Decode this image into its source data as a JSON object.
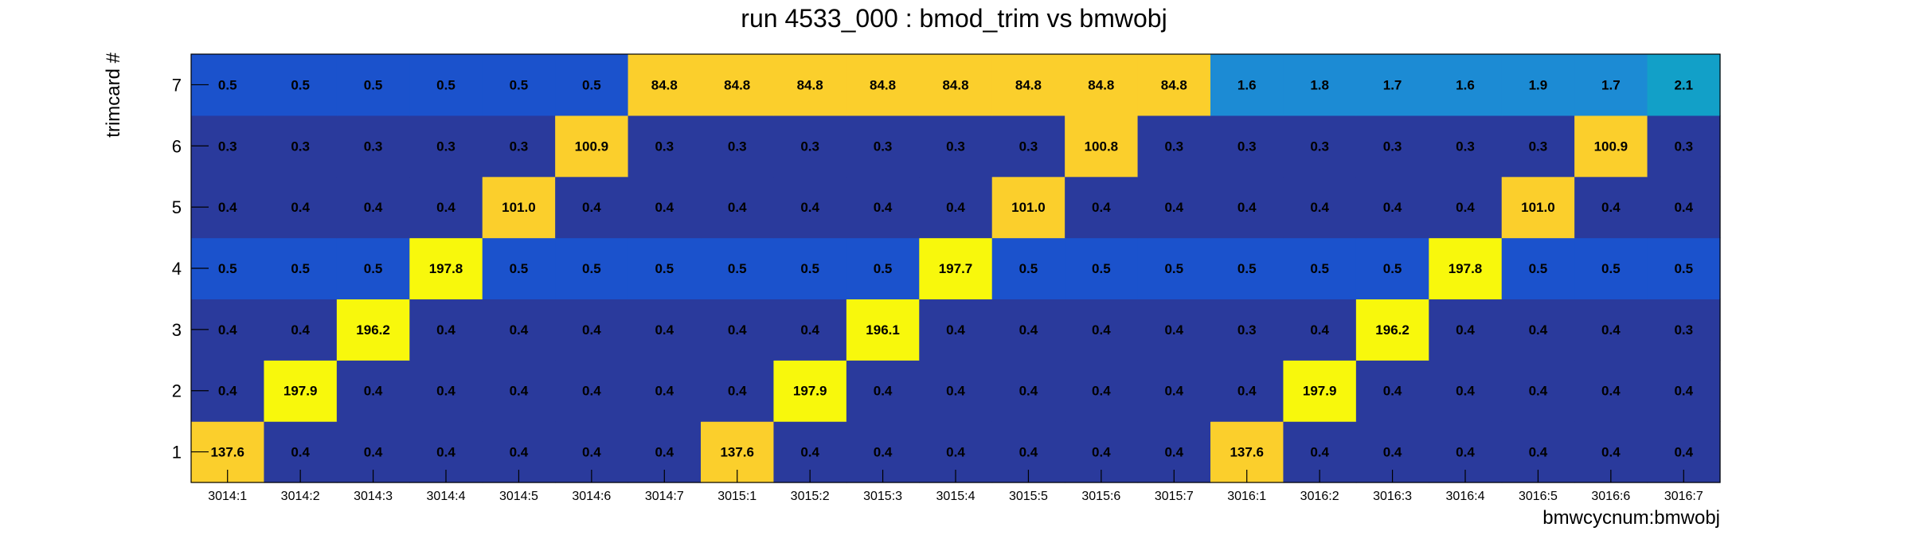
{
  "chart_data": {
    "type": "heatmap",
    "title": "run 4533_000 : bmod_trim vs bmwobj",
    "xlabel": "bmwcycnum:bmwobj",
    "ylabel": "trimcard #",
    "x_categories": [
      "3014:1",
      "3014:2",
      "3014:3",
      "3014:4",
      "3014:5",
      "3014:6",
      "3014:7",
      "3015:1",
      "3015:2",
      "3015:3",
      "3015:4",
      "3015:5",
      "3015:6",
      "3015:7",
      "3016:1",
      "3016:2",
      "3016:3",
      "3016:4",
      "3016:5",
      "3016:6",
      "3016:7"
    ],
    "y_categories": [
      "1",
      "2",
      "3",
      "4",
      "5",
      "6",
      "7"
    ],
    "values": [
      [
        137.6,
        0.4,
        0.4,
        0.4,
        0.4,
        0.4,
        0.4,
        137.6,
        0.4,
        0.4,
        0.4,
        0.4,
        0.4,
        0.4,
        137.6,
        0.4,
        0.4,
        0.4,
        0.4,
        0.4,
        0.4
      ],
      [
        0.4,
        197.9,
        0.4,
        0.4,
        0.4,
        0.4,
        0.4,
        0.4,
        197.9,
        0.4,
        0.4,
        0.4,
        0.4,
        0.4,
        0.4,
        197.9,
        0.4,
        0.4,
        0.4,
        0.4,
        0.4
      ],
      [
        0.4,
        0.4,
        196.2,
        0.4,
        0.4,
        0.4,
        0.4,
        0.4,
        0.4,
        196.1,
        0.4,
        0.4,
        0.4,
        0.4,
        0.3,
        0.4,
        196.2,
        0.4,
        0.4,
        0.4,
        0.3
      ],
      [
        0.5,
        0.5,
        0.5,
        197.8,
        0.5,
        0.5,
        0.5,
        0.5,
        0.5,
        0.5,
        197.7,
        0.5,
        0.5,
        0.5,
        0.5,
        0.5,
        0.5,
        197.8,
        0.5,
        0.5,
        0.5
      ],
      [
        0.4,
        0.4,
        0.4,
        0.4,
        101.0,
        0.4,
        0.4,
        0.4,
        0.4,
        0.4,
        0.4,
        101.0,
        0.4,
        0.4,
        0.4,
        0.4,
        0.4,
        0.4,
        101.0,
        0.4,
        0.4
      ],
      [
        0.3,
        0.3,
        0.3,
        0.3,
        0.3,
        100.9,
        0.3,
        0.3,
        0.3,
        0.3,
        0.3,
        0.3,
        100.8,
        0.3,
        0.3,
        0.3,
        0.3,
        0.3,
        0.3,
        100.9,
        0.3
      ],
      [
        0.5,
        0.5,
        0.5,
        0.5,
        0.5,
        0.5,
        84.8,
        84.8,
        84.8,
        84.8,
        84.8,
        84.8,
        84.8,
        84.8,
        1.6,
        1.8,
        1.7,
        1.6,
        1.9,
        1.7,
        2.1
      ]
    ],
    "grid": false,
    "legend": "none",
    "colors": {
      "very_low": "#2a3a9c",
      "low": "#1b52cc",
      "mid_low": "#1c8bd4",
      "mid_high": "#12a0c8",
      "high": "#fbcf2c",
      "max": "#f8f80c"
    }
  }
}
